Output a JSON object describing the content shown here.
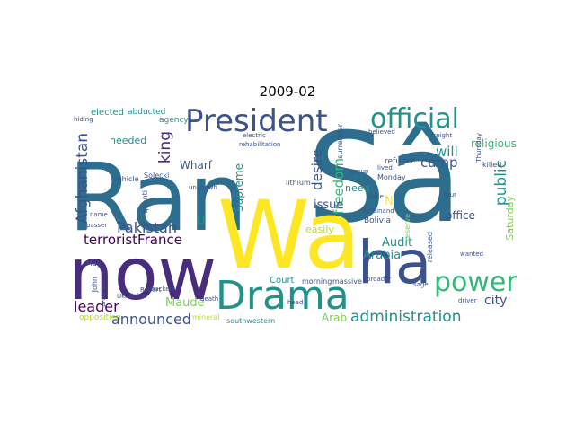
{
  "title": "2009-02",
  "words": {
    "ran": "Ran",
    "sa": "Sâ",
    "now": "now",
    "wa": "Wa",
    "ha": "ha",
    "drama": "Drama",
    "president": "President",
    "official": "official",
    "power": "power",
    "administration": "administration",
    "afghanistan": "Afghanistan",
    "pakistan": "Pakistan",
    "terrorist_france": "terroristFrance",
    "leader": "leader",
    "announced": "announced",
    "maude": "Maude",
    "king": "king",
    "wharf": "Wharf",
    "supreme": "Supreme",
    "freedom": "freedom",
    "desire": "desire",
    "issue": "issue",
    "camp": "camp",
    "will": "will",
    "public": "public",
    "religious": "religious",
    "audit": "Audit",
    "arabia": "Arabia",
    "city": "city",
    "court": "Court",
    "office": "office",
    "saturday": "Saturday",
    "arab": "Arab",
    "elected": "elected",
    "abducted": "abducted",
    "needed": "needed",
    "need": "need",
    "refugee": "refugee",
    "killed": "killed",
    "monday": "Monday",
    "agency": "agency",
    "opposition": "opposition",
    "u": "U",
    "n": "N",
    "easily": "easily",
    "morning": "morning",
    "massive": "massive",
    "lithium": "lithium",
    "bolivia": "Bolivia",
    "released": "released",
    "southwestern": "southwestern",
    "mineral": "mineral",
    "john": "John",
    "may": "May",
    "vehicle": "vehicle",
    "hiding": "hiding",
    "solecki": "Solecki",
    "quanti": "quanti",
    "surrender": "surrender",
    "ferdinand": "Ferdinand",
    "sage": "sage",
    "driver": "driver",
    "wanted": "wanted",
    "death": "death",
    "ukrainian": "Ukrainian",
    "program": "program",
    "name": "name",
    "passer": "passer",
    "robert": "Robert",
    "broader": "broader",
    "lived": "lived",
    "group": "group",
    "four": "four",
    "thursday": "Thursday",
    "freight": "freight",
    "place": "place",
    "believed": "believed",
    "electric": "electric",
    "rehabilitation": "rehabilitation",
    "head": "head",
    "unknown": "unknown",
    "hacked": "hacked",
    "reserve": "reserve"
  }
}
